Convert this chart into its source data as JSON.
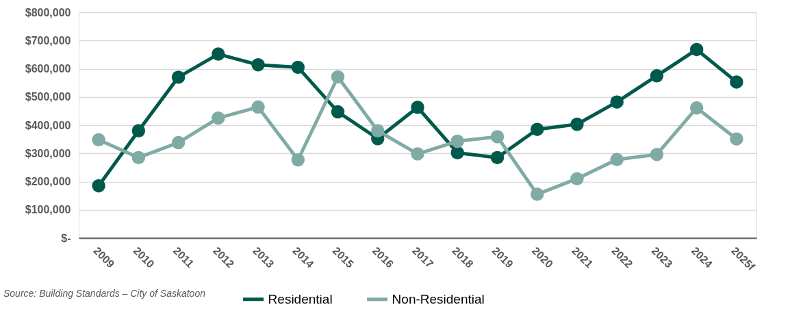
{
  "chart_data": {
    "type": "line",
    "categories": [
      "2009",
      "2010",
      "2011",
      "2012",
      "2013",
      "2014",
      "2015",
      "2016",
      "2017",
      "2018",
      "2019",
      "2020",
      "2021",
      "2022",
      "2023",
      "2024",
      "2025f"
    ],
    "series": [
      {
        "name": "Residential",
        "color": "#005a4c",
        "values": [
          185000,
          380000,
          570000,
          652000,
          614000,
          605000,
          447000,
          352000,
          463000,
          302000,
          285000,
          385000,
          403000,
          482000,
          575000,
          668000,
          553000
        ]
      },
      {
        "name": "Non-Residential",
        "color": "#80aba5",
        "values": [
          348000,
          285000,
          338000,
          425000,
          464000,
          277000,
          571000,
          380000,
          298000,
          343000,
          359000,
          155000,
          210000,
          278000,
          296000,
          461000,
          351000
        ]
      }
    ],
    "ylim": [
      0,
      800000
    ],
    "yticks": [
      {
        "value": 0,
        "label": "$-"
      },
      {
        "value": 100000,
        "label": "$100,000"
      },
      {
        "value": 200000,
        "label": "$200,000"
      },
      {
        "value": 300000,
        "label": "$300,000"
      },
      {
        "value": 400000,
        "label": "$400,000"
      },
      {
        "value": 500000,
        "label": "$500,000"
      },
      {
        "value": 600000,
        "label": "$600,000"
      },
      {
        "value": 700000,
        "label": "$700,000"
      },
      {
        "value": 800000,
        "label": "$800,000"
      }
    ],
    "grid": "y",
    "legend": "bottom",
    "marker": "circle",
    "line_style": "solid",
    "annotations": [
      "Source: Building Standards – City of Saskatoon"
    ]
  }
}
